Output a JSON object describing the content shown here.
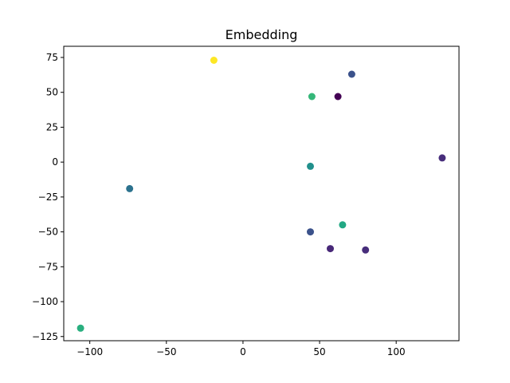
{
  "chart_data": {
    "type": "scatter",
    "title": "Embedding",
    "xlabel": "",
    "ylabel": "",
    "xlim": [
      -117,
      141
    ],
    "ylim": [
      -128,
      83
    ],
    "grid": false,
    "x_ticks": [
      {
        "value": -100,
        "label": "−100"
      },
      {
        "value": -50,
        "label": "−50"
      },
      {
        "value": 0,
        "label": "0"
      },
      {
        "value": 50,
        "label": "50"
      },
      {
        "value": 100,
        "label": "100"
      }
    ],
    "y_ticks": [
      {
        "value": 75,
        "label": "75"
      },
      {
        "value": 50,
        "label": "50"
      },
      {
        "value": 25,
        "label": "25"
      },
      {
        "value": 0,
        "label": "0"
      },
      {
        "value": -25,
        "label": "−25"
      },
      {
        "value": -50,
        "label": "−50"
      },
      {
        "value": -75,
        "label": "−75"
      },
      {
        "value": -100,
        "label": "−100"
      },
      {
        "value": -125,
        "label": "−125"
      }
    ],
    "points": [
      {
        "x": -19,
        "y": 73,
        "color": "#fde725"
      },
      {
        "x": 71,
        "y": 63,
        "color": "#3b528b"
      },
      {
        "x": 45,
        "y": 47,
        "color": "#35b779"
      },
      {
        "x": 62,
        "y": 47,
        "color": "#440154"
      },
      {
        "x": 130,
        "y": 3,
        "color": "#472d7b"
      },
      {
        "x": 44,
        "y": -3,
        "color": "#21908c"
      },
      {
        "x": -74,
        "y": -19,
        "color": "#2c728e"
      },
      {
        "x": 65,
        "y": -45,
        "color": "#22a884"
      },
      {
        "x": 44,
        "y": -50,
        "color": "#3b528b"
      },
      {
        "x": 57,
        "y": -62,
        "color": "#482878"
      },
      {
        "x": 80,
        "y": -63,
        "color": "#472d7b"
      },
      {
        "x": -106,
        "y": -119,
        "color": "#29af7f"
      }
    ]
  }
}
